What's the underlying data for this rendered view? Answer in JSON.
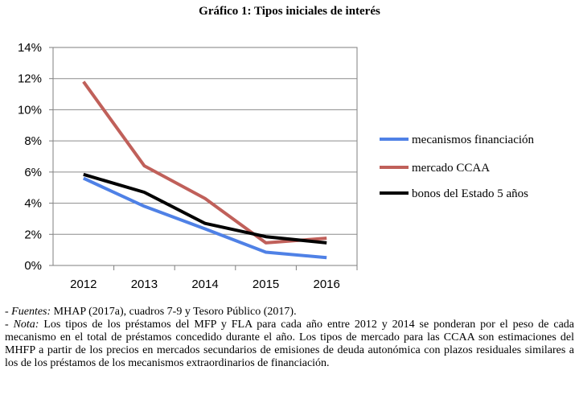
{
  "chart_data": {
    "type": "line",
    "title": "Gráfico 1: Tipos iniciales de interés",
    "xlabel": "",
    "ylabel": "",
    "categories": [
      "2012",
      "2013",
      "2014",
      "2015",
      "2016"
    ],
    "ylim": [
      0,
      14
    ],
    "yticks": [
      0,
      2,
      4,
      6,
      8,
      10,
      12,
      14
    ],
    "ytick_labels": [
      "0%",
      "2%",
      "4%",
      "6%",
      "8%",
      "10%",
      "12%",
      "14%"
    ],
    "grid": true,
    "legend_position": "right",
    "series": [
      {
        "name": "mecanismos financiación",
        "color": "#4F81E6",
        "values": [
          5.6,
          3.8,
          2.35,
          0.85,
          0.5
        ]
      },
      {
        "name": "mercado CCAA",
        "color": "#C0605A",
        "values": [
          11.8,
          6.4,
          4.3,
          1.45,
          1.75
        ]
      },
      {
        "name": "bonos del Estado 5 años",
        "color": "#000000",
        "values": [
          5.85,
          4.7,
          2.7,
          1.85,
          1.45
        ]
      }
    ]
  },
  "notes": {
    "sources_label": "Fuentes:",
    "sources_prefix": "- ",
    "sources_text": " MHAP (2017a), cuadros 7-9  y Tesoro Público (2017).",
    "note_prefix": "- ",
    "note_label": "Nota:",
    "note_text": " Los tipos de los préstamos del MFP y FLA para cada año entre 2012 y 2014 se ponderan por el peso de cada mecanismo en el total de préstamos concedido durante el año. Los tipos de mercado para las CCAA son estimaciones del MHFP a partir de los precios en mercados secundarios de emisiones de deuda autonómica con plazos residuales similares a los de los préstamos de los mecanismos extraordinarios de financiación."
  }
}
